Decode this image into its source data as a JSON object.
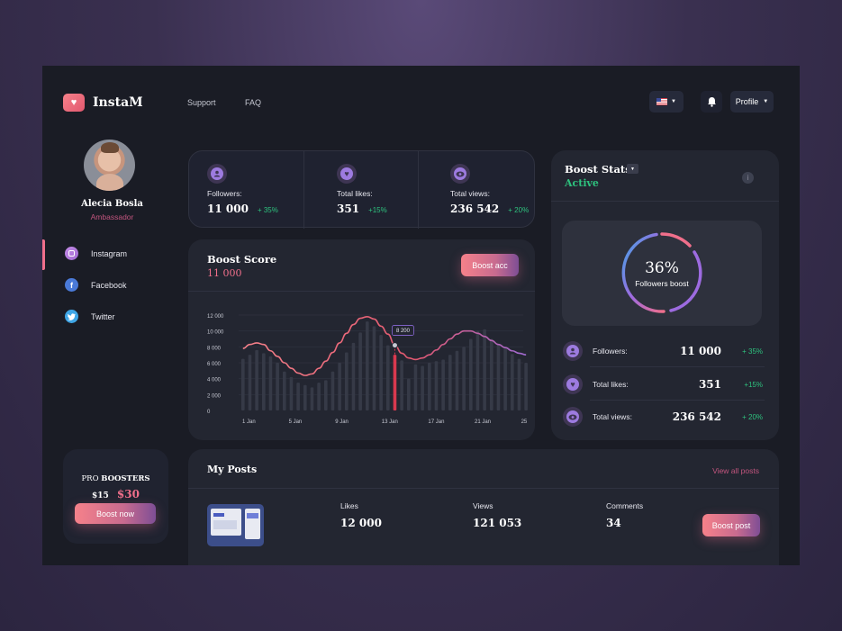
{
  "brand": {
    "name": "InstaM"
  },
  "nav": {
    "support": "Support",
    "faq": "FAQ"
  },
  "header": {
    "profile_label": "Profile"
  },
  "user": {
    "name": "Alecia Bosla",
    "role": "Ambassador"
  },
  "social": [
    {
      "label": "Instagram",
      "icon": "instagram-icon"
    },
    {
      "label": "Facebook",
      "icon": "facebook-icon"
    },
    {
      "label": "Twitter",
      "icon": "twitter-icon"
    }
  ],
  "stats": [
    {
      "label": "Followers:",
      "value": "11 000",
      "change": "+ 35%",
      "icon": "user-icon"
    },
    {
      "label": "Total likes:",
      "value": "351",
      "change": "+15%",
      "icon": "heart-icon"
    },
    {
      "label": "Total views:",
      "value": "236 542",
      "change": "+ 20%",
      "icon": "eye-icon"
    }
  ],
  "boost_score": {
    "title": "Boost Score",
    "value": "11 000",
    "button": "Boost acc",
    "tooltip": "8 200"
  },
  "chart_data": {
    "type": "bar",
    "y_ticks": [
      "12 000",
      "10 000",
      "8 000",
      "6 000",
      "4 000",
      "2 000",
      "0"
    ],
    "x_ticks": [
      "1 Jan",
      "5 Jan",
      "9 Jan",
      "13 Jan",
      "17 Jan",
      "21 Jan",
      "25"
    ],
    "ylim": [
      0,
      12000
    ],
    "bars": [
      6500,
      7000,
      7600,
      7200,
      6800,
      6000,
      4900,
      4200,
      3500,
      3200,
      2900,
      3500,
      3800,
      4900,
      6000,
      7300,
      8500,
      9800,
      11200,
      10600,
      9500,
      8200,
      7000,
      6300,
      4000,
      5800,
      5600,
      6000,
      6200,
      6400,
      7000,
      7500,
      8000,
      9000,
      10000,
      10200,
      9000,
      8300,
      7800,
      7100,
      6500,
      6000
    ],
    "highlight_index": 22,
    "line": [
      7800,
      8300,
      8500,
      8300,
      7500,
      6800,
      6000,
      5300,
      4700,
      4400,
      4600,
      5300,
      6200,
      7300,
      8500,
      9700,
      10800,
      11600,
      11800,
      11500,
      10600,
      9600,
      8200,
      7200,
      6600,
      6400,
      6600,
      7000,
      7600,
      8300,
      9000,
      9600,
      10000,
      10000,
      9700,
      9300,
      8800,
      8300,
      7900,
      7500,
      7200,
      7000
    ],
    "series_color": "#f06f8b"
  },
  "boost_stats": {
    "title": "Boost Stats",
    "status": "Active",
    "percent": "36%",
    "percent_label": "Followers boost",
    "rows": [
      {
        "label": "Followers:",
        "value": "11 000",
        "change": "+ 35%"
      },
      {
        "label": "Total likes:",
        "value": "351",
        "change": "+15%"
      },
      {
        "label": "Total views:",
        "value": "236 542",
        "change": "+ 20%"
      }
    ]
  },
  "promo": {
    "line1_pre": "PRO",
    "line1_bold": "BOOSTERS",
    "old_price": "$15",
    "new_price": "$30",
    "button": "Boost now"
  },
  "posts": {
    "title": "My Posts",
    "view_all": "View all posts",
    "columns": [
      {
        "label": "Likes",
        "value": "12 000"
      },
      {
        "label": "Views",
        "value": "121 053"
      },
      {
        "label": "Comments",
        "value": "34"
      }
    ],
    "button": "Boost post"
  }
}
